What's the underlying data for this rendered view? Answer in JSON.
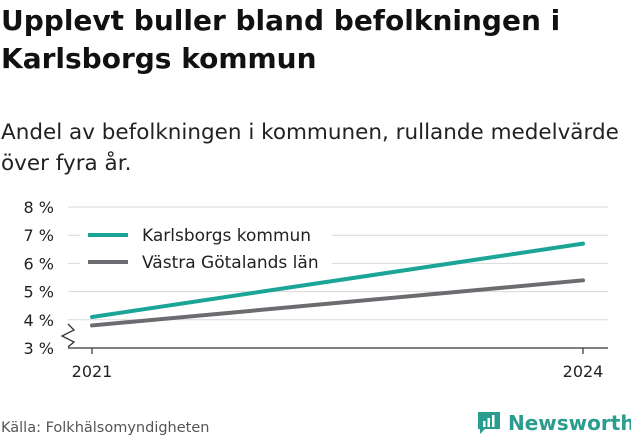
{
  "title": "Upplevt buller bland befolkningen i Karlsborgs kommun",
  "subtitle": "Andel av befolkningen i kommunen, rullande medelvärde över fyra år.",
  "source": "Källa: Folkhälsomyndigheten",
  "brand": {
    "name": "Newsworthy",
    "icon": "newsworthy-logo-icon",
    "color": "#2a9d8f"
  },
  "chart_data": {
    "type": "line",
    "x": [
      "2021",
      "2024"
    ],
    "series": [
      {
        "name": "Karlsborgs kommun",
        "values": [
          4.1,
          6.7
        ],
        "color": "#1aa596"
      },
      {
        "name": "Västra Götalands län",
        "values": [
          3.8,
          5.4
        ],
        "color": "#6d6b70"
      }
    ],
    "ylim": [
      3,
      8
    ],
    "yticks": [
      3,
      4,
      5,
      6,
      7,
      8
    ],
    "ytick_labels": [
      "3 %",
      "4 %",
      "5 %",
      "6 %",
      "7 %",
      "8 %"
    ],
    "xtick_labels": [
      "2021",
      "2024"
    ],
    "y_axis_break": true,
    "grid": true,
    "legend_position": "top-left"
  }
}
